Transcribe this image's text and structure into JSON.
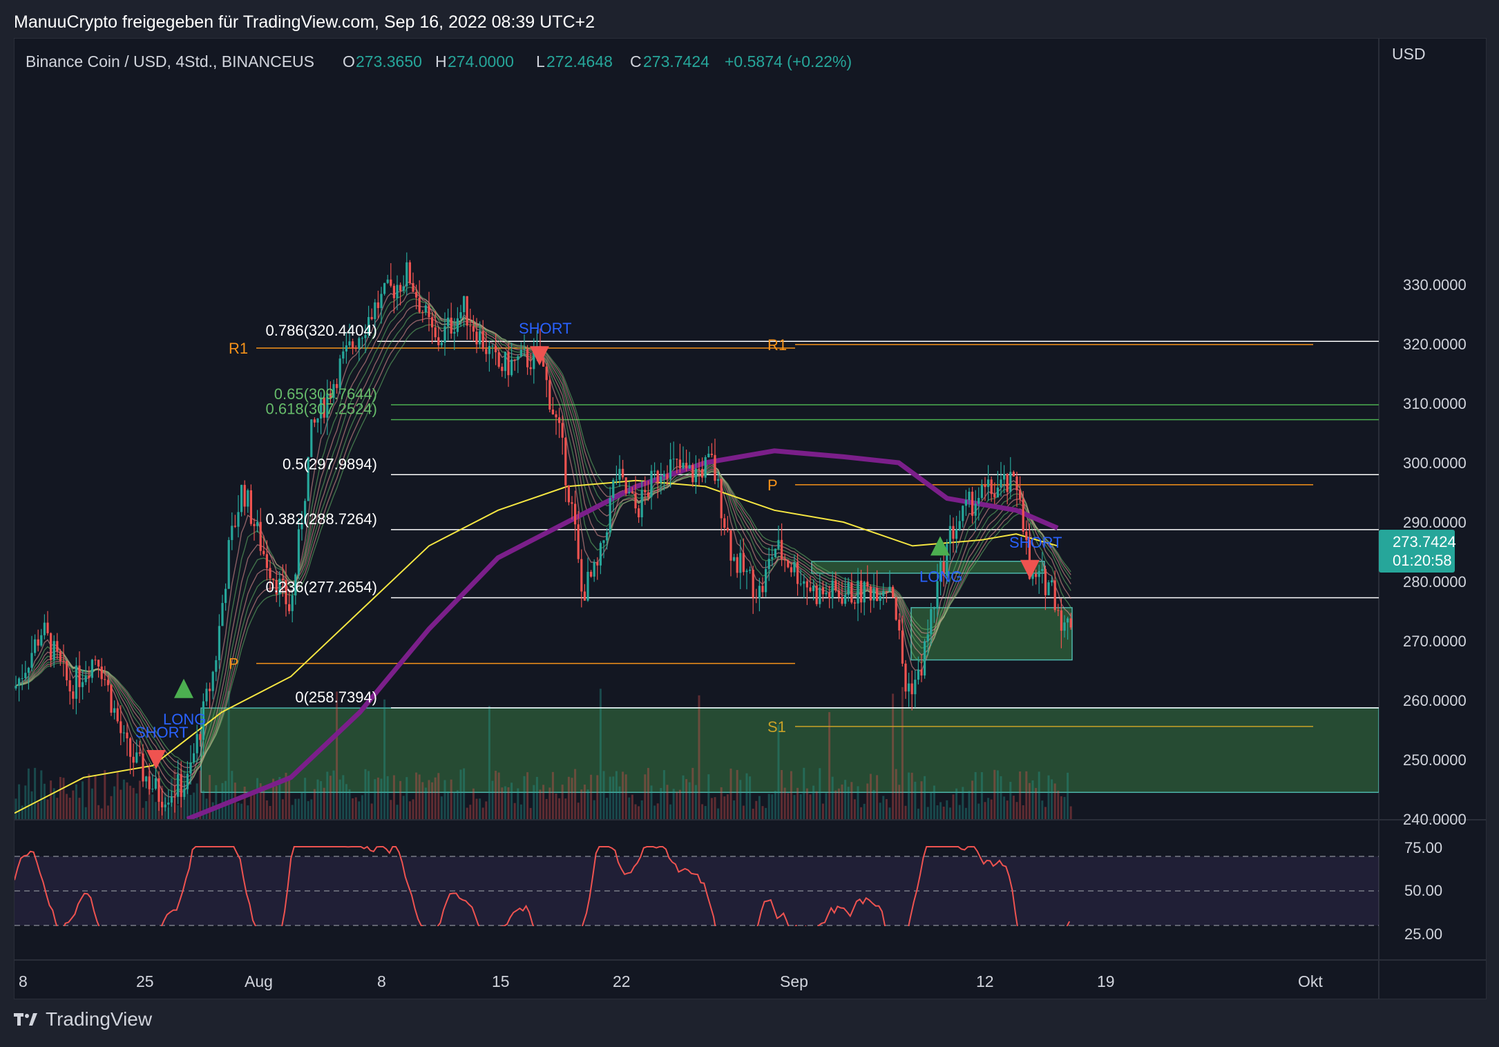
{
  "header": {
    "publisher": "ManuuCrypto freigegeben für TradingView.com, Sep 16, 2022 08:39 UTC+2"
  },
  "legend": {
    "symbol": "Binance Coin / USD, 4Std., BINANCEUS",
    "open_label": "O",
    "open": "273.3650",
    "high_label": "H",
    "high": "274.0000",
    "low_label": "L",
    "low": "272.4648",
    "close_label": "C",
    "close": "273.7424",
    "change": "+0.5874 (+0.22%)"
  },
  "price_axis": {
    "unit": "USD",
    "ticks": [
      "330.0000",
      "320.0000",
      "310.0000",
      "300.0000",
      "290.0000",
      "280.0000",
      "270.0000",
      "260.0000",
      "250.0000",
      "240.0000"
    ],
    "tick_values": [
      330,
      320,
      310,
      300,
      290,
      280,
      270,
      260,
      250,
      240
    ],
    "current_price": "273.7424",
    "countdown": "01:20:58"
  },
  "rsi_axis": {
    "ticks": [
      "75.00",
      "50.00",
      "25.00"
    ]
  },
  "time_axis": {
    "ticks": [
      "8",
      "25",
      "Aug",
      "8",
      "15",
      "22",
      "Sep",
      "12",
      "19",
      "Okt"
    ]
  },
  "fib_levels": [
    {
      "label": "0.786(320.4404)",
      "value": 320.44
    },
    {
      "label": "0.65(309.7644)",
      "value": 309.76
    },
    {
      "label": "0.618(307.2524)",
      "value": 307.25
    },
    {
      "label": "0.5(297.9894)",
      "value": 297.99
    },
    {
      "label": "0.382(288.7264)",
      "value": 288.73
    },
    {
      "label": "0.236(277.2654)",
      "value": 277.27
    },
    {
      "label": "0(258.7394)",
      "value": 258.74
    }
  ],
  "pivots": [
    {
      "label": "R1",
      "value": 319.3
    },
    {
      "label": "R1",
      "value": 319.9
    },
    {
      "label": "P",
      "value": 266.2
    },
    {
      "label": "P",
      "value": 296.3
    },
    {
      "label": "S1",
      "value": 255.6
    }
  ],
  "signals": [
    {
      "label": "SHORT",
      "type": "short"
    },
    {
      "label": "LONG",
      "type": "long"
    },
    {
      "label": "SHORT",
      "type": "short"
    },
    {
      "label": "LONG",
      "type": "long"
    },
    {
      "label": "SHORT",
      "type": "short"
    }
  ],
  "footer": {
    "brand": "TradingView"
  },
  "colors": {
    "background": "#131722",
    "up": "#26a69a",
    "down": "#ef5350",
    "accent": "#2962ff",
    "fib_white": "#ffffff",
    "fib_green": "#4caf50",
    "pivot": "#f7931a",
    "ma_yellow": "#f5e642",
    "ma_purple": "#7b1f8a",
    "zone": "#2e5e3a",
    "price_tag": "#26a69a"
  },
  "chart_data": {
    "type": "candlestick",
    "title": "Binance Coin / USD, 4Std., BINANCEUS",
    "ylabel": "USD",
    "ylim": [
      240,
      333
    ],
    "x_ticks": [
      "8",
      "25",
      "Aug",
      "8",
      "15",
      "22",
      "Sep",
      "12",
      "19",
      "Okt"
    ],
    "approx_close_path": [
      {
        "x": "8 Jul",
        "close": 262
      },
      {
        "x": "12 Jul",
        "close": 272
      },
      {
        "x": "16 Jul",
        "close": 262
      },
      {
        "x": "20 Jul",
        "close": 268
      },
      {
        "x": "24 Jul",
        "close": 250
      },
      {
        "x": "26 Jul",
        "close": 244
      },
      {
        "x": "28 Jul",
        "close": 266
      },
      {
        "x": "30 Jul",
        "close": 285
      },
      {
        "x": "1 Aug",
        "close": 296
      },
      {
        "x": "3 Aug",
        "close": 285
      },
      {
        "x": "5 Aug",
        "close": 305
      },
      {
        "x": "7 Aug",
        "close": 316
      },
      {
        "x": "9 Aug",
        "close": 326
      },
      {
        "x": "11 Aug",
        "close": 332
      },
      {
        "x": "13 Aug",
        "close": 320
      },
      {
        "x": "15 Aug",
        "close": 326
      },
      {
        "x": "17 Aug",
        "close": 316
      },
      {
        "x": "19 Aug",
        "close": 304
      },
      {
        "x": "20 Aug",
        "close": 280
      },
      {
        "x": "22 Aug",
        "close": 298
      },
      {
        "x": "24 Aug",
        "close": 300
      },
      {
        "x": "26 Aug",
        "close": 300
      },
      {
        "x": "28 Aug",
        "close": 280
      },
      {
        "x": "30 Aug",
        "close": 286
      },
      {
        "x": "1 Sep",
        "close": 278
      },
      {
        "x": "4 Sep",
        "close": 278
      },
      {
        "x": "6 Sep",
        "close": 262
      },
      {
        "x": "8 Sep",
        "close": 276
      },
      {
        "x": "10 Sep",
        "close": 294
      },
      {
        "x": "12 Sep",
        "close": 296
      },
      {
        "x": "13 Sep",
        "close": 280
      },
      {
        "x": "15 Sep",
        "close": 272
      },
      {
        "x": "16 Sep",
        "close": 273.74
      }
    ],
    "zones": [
      {
        "from": 244.5,
        "to": 258.7
      },
      {
        "from": 266.8,
        "to": 275.6
      },
      {
        "from": 281.4,
        "to": 283.4
      }
    ],
    "rsi": {
      "levels": [
        70,
        50,
        30
      ],
      "last": 35
    }
  }
}
